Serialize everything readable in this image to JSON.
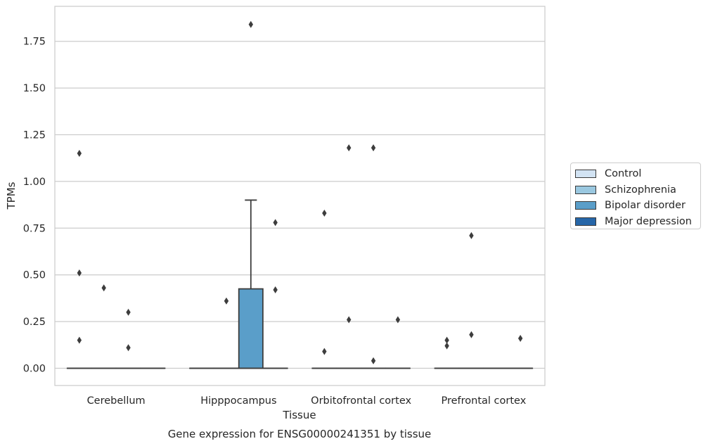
{
  "chart_data": {
    "type": "box",
    "title": "Gene expression for ENSG00000241351 by tissue",
    "xlabel": "Tissue",
    "ylabel": "TPMs",
    "ylim": [
      -0.09,
      1.93
    ],
    "yticks": [
      0.0,
      0.25,
      0.5,
      0.75,
      1.0,
      1.25,
      1.5,
      1.75
    ],
    "ytick_labels": [
      "0.00",
      "0.25",
      "0.50",
      "0.75",
      "1.00",
      "1.25",
      "1.50",
      "1.75"
    ],
    "grid": "horizontal",
    "legend_placement": "right",
    "categories": [
      "Cerebellum",
      "Hipppocampus",
      "Orbitofrontal cortex",
      "Prefrontal cortex"
    ],
    "series": [
      {
        "name": "Control",
        "color": "#d2e3f3",
        "boxes": [
          {
            "q1": 0,
            "median": 0,
            "q3": 0,
            "whisker_low": 0,
            "whisker_high": 0,
            "outliers": [
              1.15,
              0.51,
              0.15
            ]
          },
          {
            "q1": 0,
            "median": 0,
            "q3": 0,
            "whisker_low": 0,
            "whisker_high": 0,
            "outliers": []
          },
          {
            "q1": 0,
            "median": 0,
            "q3": 0,
            "whisker_low": 0,
            "whisker_high": 0,
            "outliers": [
              0.83,
              0.09
            ]
          },
          {
            "q1": 0,
            "median": 0,
            "q3": 0,
            "whisker_low": 0,
            "whisker_high": 0,
            "outliers": [
              0.15,
              0.12
            ]
          }
        ]
      },
      {
        "name": "Schizophrenia",
        "color": "#9ac8e0",
        "boxes": [
          {
            "q1": 0,
            "median": 0,
            "q3": 0,
            "whisker_low": 0,
            "whisker_high": 0,
            "outliers": [
              0.43
            ]
          },
          {
            "q1": 0,
            "median": 0,
            "q3": 0,
            "whisker_low": 0,
            "whisker_high": 0,
            "outliers": [
              0.36
            ]
          },
          {
            "q1": 0,
            "median": 0,
            "q3": 0,
            "whisker_low": 0,
            "whisker_high": 0,
            "outliers": [
              1.18,
              0.26
            ]
          },
          {
            "q1": 0,
            "median": 0,
            "q3": 0,
            "whisker_low": 0,
            "whisker_high": 0,
            "outliers": [
              0.71,
              0.18
            ]
          }
        ]
      },
      {
        "name": "Bipolar disorder",
        "color": "#5a9ec9",
        "boxes": [
          {
            "q1": 0,
            "median": 0,
            "q3": 0,
            "whisker_low": 0,
            "whisker_high": 0,
            "outliers": [
              0.3,
              0.11
            ]
          },
          {
            "q1": 0,
            "median": 0,
            "q3": 0.425,
            "whisker_low": 0,
            "whisker_high": 0.9,
            "outliers": [
              1.84
            ]
          },
          {
            "q1": 0,
            "median": 0,
            "q3": 0,
            "whisker_low": 0,
            "whisker_high": 0,
            "outliers": [
              1.18,
              0.04
            ]
          },
          {
            "q1": 0,
            "median": 0,
            "q3": 0,
            "whisker_low": 0,
            "whisker_high": 0,
            "outliers": []
          }
        ]
      },
      {
        "name": "Major depression",
        "color": "#2666a8",
        "boxes": [
          {
            "q1": 0,
            "median": 0,
            "q3": 0,
            "whisker_low": 0,
            "whisker_high": 0,
            "outliers": []
          },
          {
            "q1": 0,
            "median": 0,
            "q3": 0,
            "whisker_low": 0,
            "whisker_high": 0,
            "outliers": [
              0.78,
              0.42
            ]
          },
          {
            "q1": 0,
            "median": 0,
            "q3": 0,
            "whisker_low": 0,
            "whisker_high": 0,
            "outliers": [
              0.26
            ]
          },
          {
            "q1": 0,
            "median": 0,
            "q3": 0,
            "whisker_low": 0,
            "whisker_high": 0,
            "outliers": [
              0.16
            ]
          }
        ]
      }
    ]
  }
}
